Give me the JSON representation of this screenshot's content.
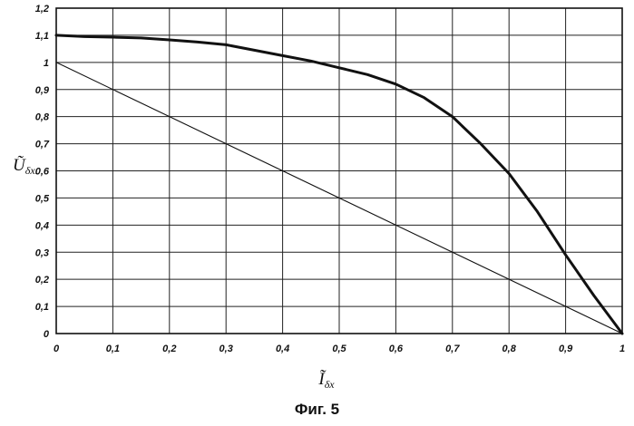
{
  "figure": {
    "caption": "Фиг. 5"
  },
  "chart_data": {
    "type": "line",
    "title": "",
    "xlabel": {
      "base": "Ĩ",
      "sub": "δx"
    },
    "ylabel": {
      "base": "Ũ",
      "sub": "δx."
    },
    "xlim": [
      0,
      1
    ],
    "ylim": [
      0,
      1.2
    ],
    "grid": true,
    "x_ticks": [
      0,
      0.1,
      0.2,
      0.3,
      0.4,
      0.5,
      0.6,
      0.7,
      0.8,
      0.9,
      1
    ],
    "x_tick_labels": [
      "0",
      "0,1",
      "0,2",
      "0,3",
      "0,4",
      "0,5",
      "0,6",
      "0,7",
      "0,8",
      "0,9",
      "1"
    ],
    "y_ticks": [
      0,
      0.1,
      0.2,
      0.3,
      0.4,
      0.5,
      0.6,
      0.7,
      0.8,
      0.9,
      1,
      1.1,
      1.2
    ],
    "y_tick_labels": [
      "0",
      "0,1",
      "0,2",
      "0,3",
      "0,4",
      "0,5",
      "0,6",
      "0,7",
      "0,8",
      "0,9",
      "1",
      "1,1",
      "1,2"
    ],
    "series": [
      {
        "style": "thick",
        "x": [
          0,
          0.05,
          0.1,
          0.15,
          0.2,
          0.25,
          0.3,
          0.35,
          0.4,
          0.45,
          0.5,
          0.55,
          0.6,
          0.65,
          0.7,
          0.75,
          0.8,
          0.85,
          0.9,
          0.95,
          1
        ],
        "y": [
          1.1,
          1.095,
          1.093,
          1.09,
          1.083,
          1.075,
          1.065,
          1.045,
          1.025,
          1.005,
          0.98,
          0.955,
          0.92,
          0.87,
          0.8,
          0.7,
          0.59,
          0.45,
          0.29,
          0.14,
          0
        ]
      },
      {
        "style": "thin",
        "x": [
          0,
          1
        ],
        "y": [
          1,
          0
        ]
      }
    ]
  }
}
